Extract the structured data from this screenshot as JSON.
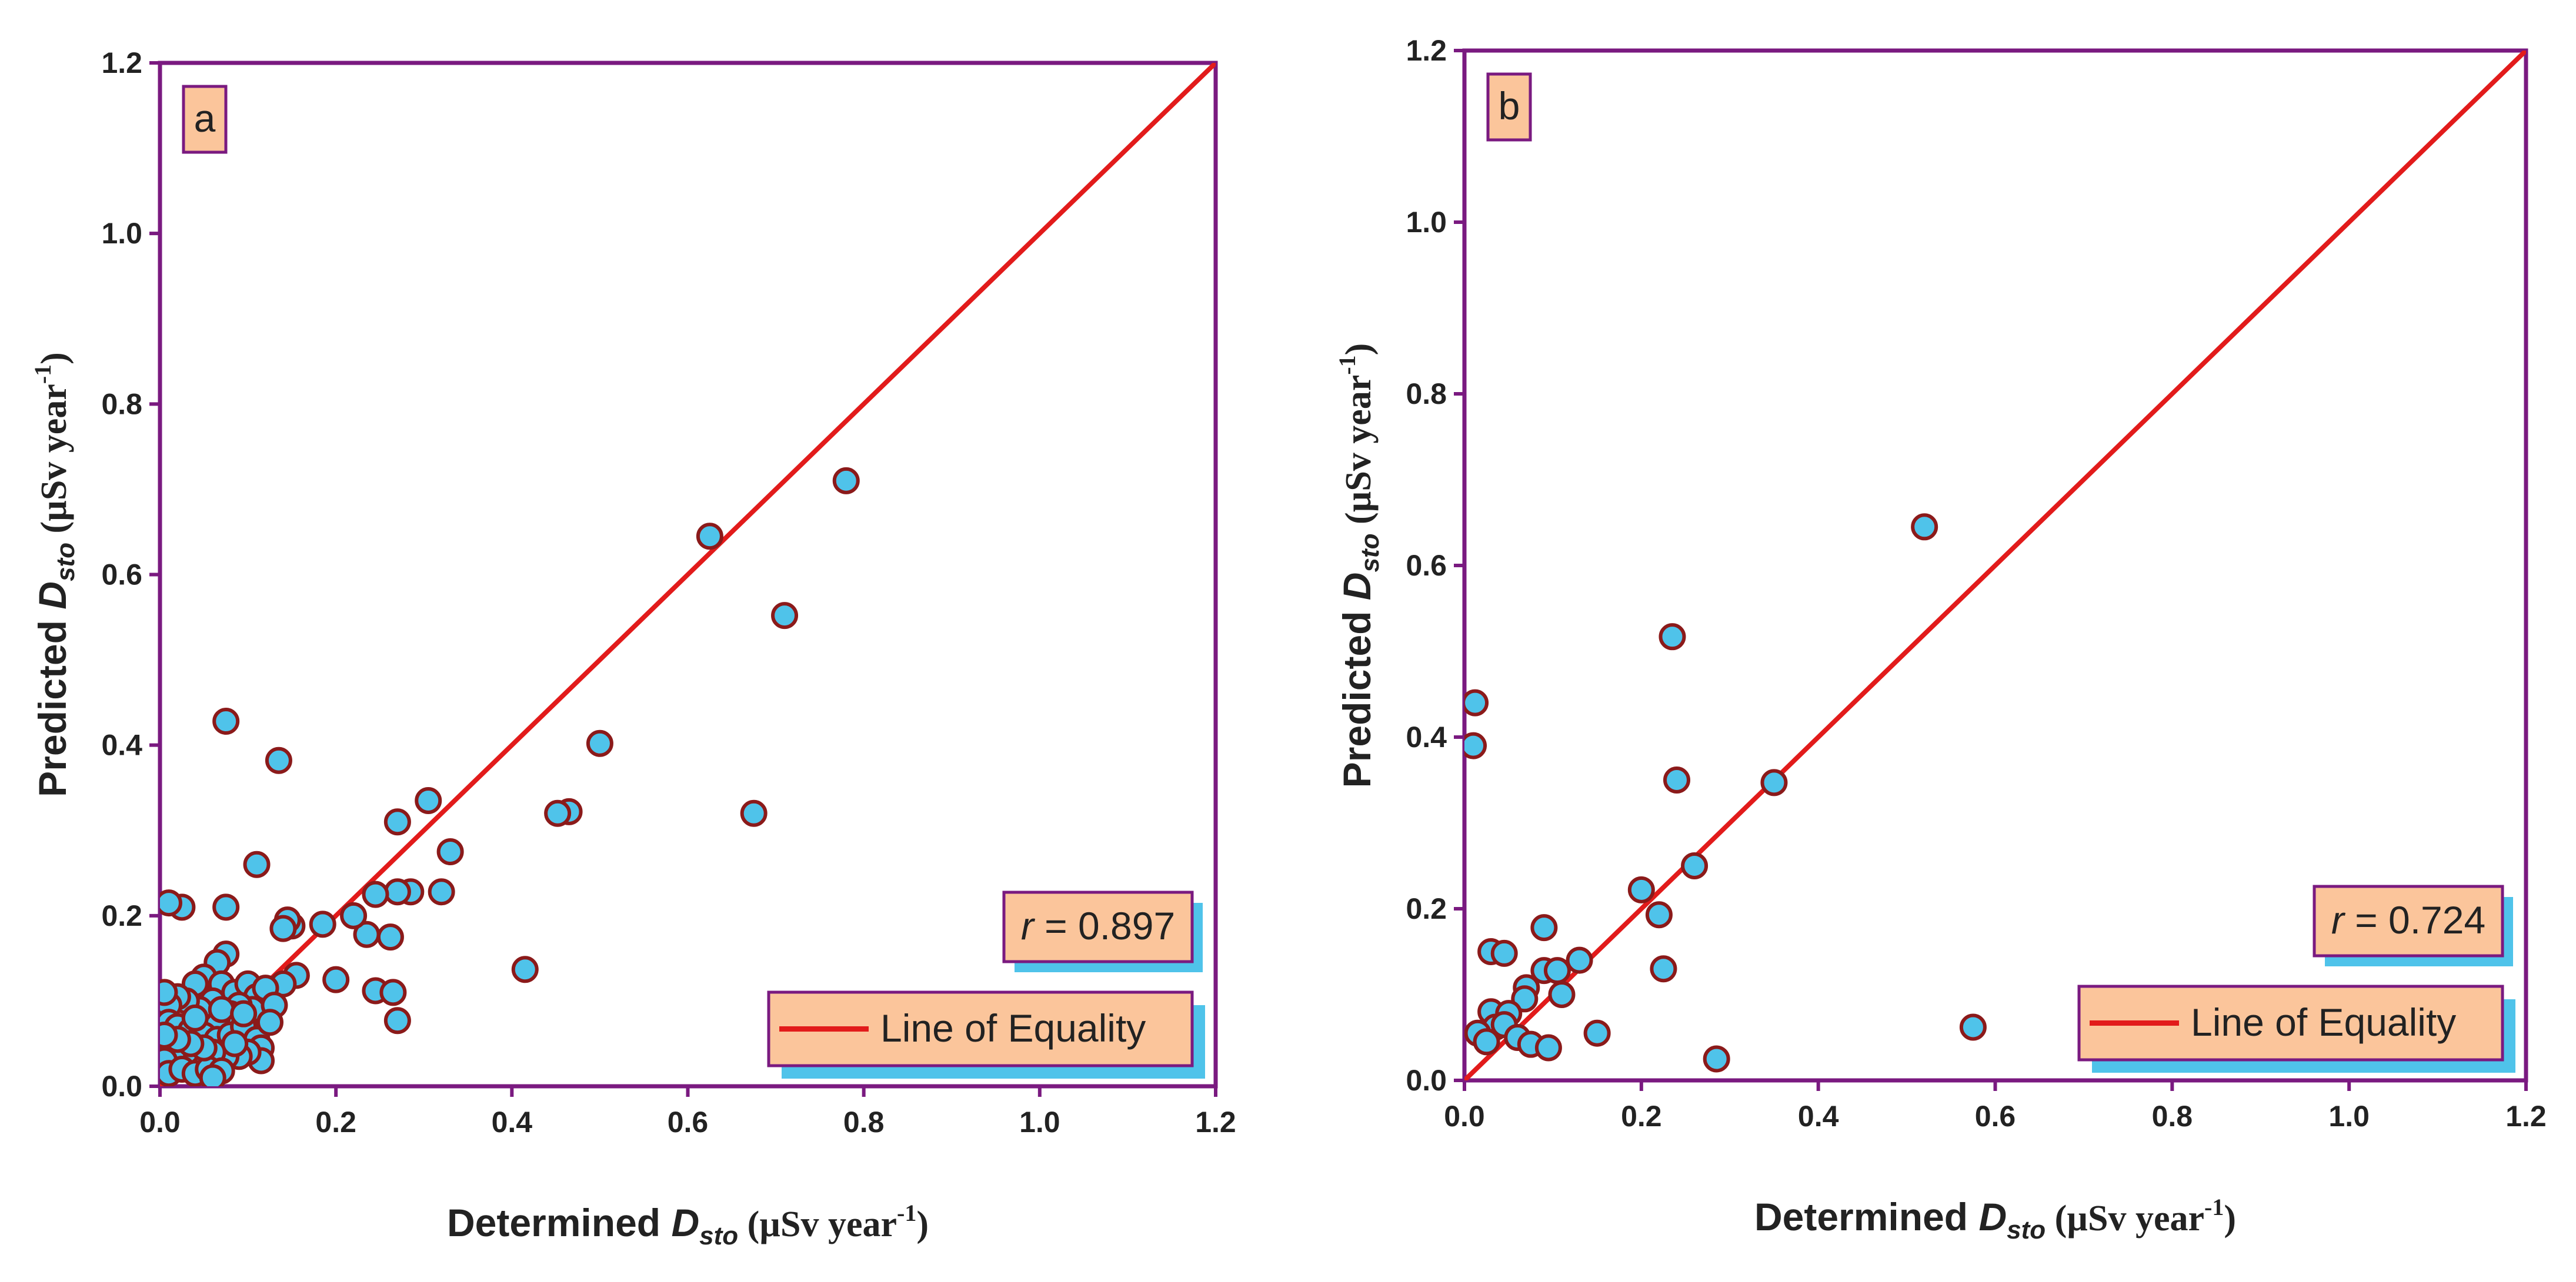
{
  "colors": {
    "frame": "#7a1a80",
    "equality_line": "#e21b1b",
    "point_fill": "#4fc3ea",
    "point_edge": "#8b1a1a",
    "box_fill": "#fbc59b",
    "box_shadow": "#4fc3ea"
  },
  "chart_data": [
    {
      "type": "scatter",
      "panel_label": "a",
      "xlabel": {
        "prefix": "Determined ",
        "var": "D",
        "sub": "sto",
        "unit": " (µSv year",
        "exp": "-1",
        "close": ")"
      },
      "ylabel": {
        "prefix": "Predicted ",
        "var": "D",
        "sub": "sto",
        "unit": " (µSv year",
        "exp": "-1",
        "close": ")"
      },
      "xlim": [
        0,
        1.2
      ],
      "ylim": [
        0,
        1.2
      ],
      "xticks": [
        "0.0",
        "0.2",
        "0.4",
        "0.6",
        "0.8",
        "1.0",
        "1.2"
      ],
      "yticks": [
        "0.0",
        "0.2",
        "0.4",
        "0.6",
        "0.8",
        "1.0",
        "1.2"
      ],
      "r_label": {
        "var": "r",
        "text": " = 0.897"
      },
      "legend": {
        "entry": "Line of Equality",
        "position": "bottom-right"
      },
      "equality_line": [
        [
          0,
          0
        ],
        [
          1.2,
          1.2
        ]
      ],
      "points": [
        [
          0.78,
          0.71
        ],
        [
          0.625,
          0.645
        ],
        [
          0.71,
          0.552
        ],
        [
          0.675,
          0.32
        ],
        [
          0.5,
          0.402
        ],
        [
          0.465,
          0.322
        ],
        [
          0.452,
          0.32
        ],
        [
          0.415,
          0.137
        ],
        [
          0.075,
          0.428
        ],
        [
          0.135,
          0.382
        ],
        [
          0.305,
          0.335
        ],
        [
          0.33,
          0.275
        ],
        [
          0.27,
          0.31
        ],
        [
          0.32,
          0.228
        ],
        [
          0.285,
          0.228
        ],
        [
          0.27,
          0.228
        ],
        [
          0.245,
          0.225
        ],
        [
          0.262,
          0.175
        ],
        [
          0.235,
          0.178
        ],
        [
          0.22,
          0.2
        ],
        [
          0.245,
          0.112
        ],
        [
          0.265,
          0.11
        ],
        [
          0.27,
          0.077
        ],
        [
          0.2,
          0.125
        ],
        [
          0.185,
          0.19
        ],
        [
          0.15,
          0.188
        ],
        [
          0.145,
          0.195
        ],
        [
          0.14,
          0.185
        ],
        [
          0.155,
          0.13
        ],
        [
          0.14,
          0.12
        ],
        [
          0.11,
          0.26
        ],
        [
          0.075,
          0.21
        ],
        [
          0.025,
          0.21
        ],
        [
          0.01,
          0.215
        ],
        [
          0.075,
          0.155
        ],
        [
          0.065,
          0.145
        ],
        [
          0.05,
          0.128
        ],
        [
          0.04,
          0.12
        ],
        [
          0.07,
          0.12
        ],
        [
          0.085,
          0.11
        ],
        [
          0.1,
          0.12
        ],
        [
          0.11,
          0.105
        ],
        [
          0.12,
          0.115
        ],
        [
          0.105,
          0.09
        ],
        [
          0.09,
          0.095
        ],
        [
          0.08,
          0.085
        ],
        [
          0.06,
          0.1
        ],
        [
          0.065,
          0.08
        ],
        [
          0.045,
          0.09
        ],
        [
          0.03,
          0.1
        ],
        [
          0.02,
          0.105
        ],
        [
          0.01,
          0.095
        ],
        [
          0.005,
          0.11
        ],
        [
          0.01,
          0.075
        ],
        [
          0.02,
          0.07
        ],
        [
          0.035,
          0.065
        ],
        [
          0.05,
          0.06
        ],
        [
          0.065,
          0.055
        ],
        [
          0.08,
          0.06
        ],
        [
          0.095,
          0.07
        ],
        [
          0.11,
          0.055
        ],
        [
          0.115,
          0.045
        ],
        [
          0.115,
          0.03
        ],
        [
          0.1,
          0.04
        ],
        [
          0.09,
          0.035
        ],
        [
          0.075,
          0.035
        ],
        [
          0.06,
          0.04
        ],
        [
          0.045,
          0.035
        ],
        [
          0.03,
          0.04
        ],
        [
          0.015,
          0.035
        ],
        [
          0.005,
          0.03
        ],
        [
          0.01,
          0.015
        ],
        [
          0.025,
          0.02
        ],
        [
          0.04,
          0.015
        ],
        [
          0.055,
          0.02
        ],
        [
          0.07,
          0.018
        ],
        [
          0.06,
          0.01
        ],
        [
          0.085,
          0.05
        ],
        [
          0.07,
          0.09
        ],
        [
          0.05,
          0.045
        ],
        [
          0.035,
          0.05
        ],
        [
          0.02,
          0.055
        ],
        [
          0.005,
          0.06
        ],
        [
          0.04,
          0.08
        ],
        [
          0.095,
          0.085
        ],
        [
          0.13,
          0.095
        ],
        [
          0.125,
          0.075
        ]
      ]
    },
    {
      "type": "scatter",
      "panel_label": "b",
      "xlabel": {
        "prefix": "Determined ",
        "var": "D",
        "sub": "sto",
        "unit": " (µSv year",
        "exp": "-1",
        "close": ")"
      },
      "ylabel": {
        "prefix": "Predicted ",
        "var": "D",
        "sub": "sto",
        "unit": " (µSv year",
        "exp": "-1",
        "close": ")"
      },
      "xlim": [
        0,
        1.2
      ],
      "ylim": [
        0,
        1.2
      ],
      "xticks": [
        "0.0",
        "0.2",
        "0.4",
        "0.6",
        "0.8",
        "1.0",
        "1.2"
      ],
      "yticks": [
        "0.0",
        "0.2",
        "0.4",
        "0.6",
        "0.8",
        "1.0",
        "1.2"
      ],
      "r_label": {
        "var": "r",
        "text": " = 0.724"
      },
      "legend": {
        "entry": "Line of Equality",
        "position": "bottom-right"
      },
      "equality_line": [
        [
          0,
          0
        ],
        [
          1.2,
          1.2
        ]
      ],
      "points": [
        [
          0.52,
          0.645
        ],
        [
          0.235,
          0.517
        ],
        [
          0.012,
          0.44
        ],
        [
          0.01,
          0.39
        ],
        [
          0.24,
          0.35
        ],
        [
          0.35,
          0.347
        ],
        [
          0.26,
          0.25
        ],
        [
          0.2,
          0.222
        ],
        [
          0.22,
          0.193
        ],
        [
          0.09,
          0.178
        ],
        [
          0.03,
          0.15
        ],
        [
          0.045,
          0.148
        ],
        [
          0.13,
          0.14
        ],
        [
          0.225,
          0.13
        ],
        [
          0.09,
          0.128
        ],
        [
          0.105,
          0.128
        ],
        [
          0.07,
          0.108
        ],
        [
          0.11,
          0.1
        ],
        [
          0.068,
          0.095
        ],
        [
          0.03,
          0.08
        ],
        [
          0.05,
          0.078
        ],
        [
          0.035,
          0.062
        ],
        [
          0.015,
          0.055
        ],
        [
          0.045,
          0.065
        ],
        [
          0.06,
          0.05
        ],
        [
          0.075,
          0.042
        ],
        [
          0.095,
          0.038
        ],
        [
          0.15,
          0.055
        ],
        [
          0.575,
          0.062
        ],
        [
          0.285,
          0.025
        ],
        [
          0.025,
          0.045
        ]
      ]
    }
  ]
}
